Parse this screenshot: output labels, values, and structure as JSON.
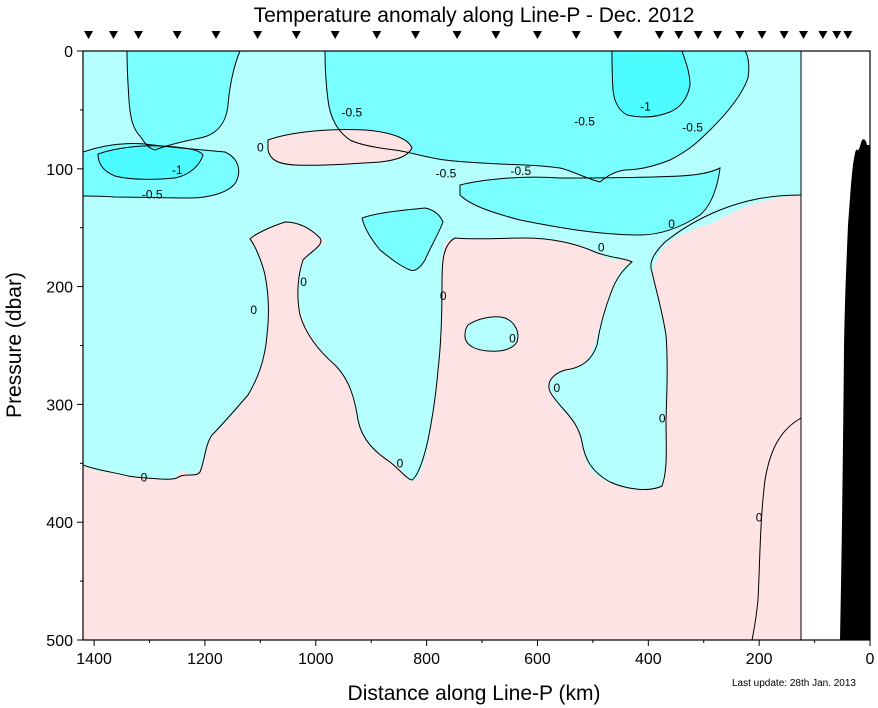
{
  "chart_data": {
    "type": "contour",
    "title": "Temperature anomaly along Line-P - Dec. 2012",
    "xlabel": "Distance along Line-P (km)",
    "ylabel": "Pressure (dbar)",
    "xlim": [
      1420,
      0
    ],
    "ylim": [
      500,
      0
    ],
    "x_ticks": [
      1400,
      1200,
      1000,
      800,
      600,
      400,
      200,
      0
    ],
    "y_ticks": [
      0,
      100,
      200,
      300,
      400,
      500
    ],
    "station_distances_km": [
      1410,
      1365,
      1320,
      1250,
      1180,
      1105,
      1035,
      965,
      890,
      820,
      745,
      675,
      600,
      530,
      455,
      380,
      345,
      310,
      275,
      235,
      195,
      155,
      120,
      85,
      60,
      40
    ],
    "contour_levels": [
      -1,
      -0.5,
      0
    ],
    "colors": {
      "positive": "#fde3e3",
      "negative_light": "#b5ffff",
      "negative_medium": "#79ffff",
      "negative_strong": "#4dfcff",
      "line": "#000000"
    },
    "labels": [
      {
        "text": "-0.5",
        "x": 935,
        "y": 52
      },
      {
        "text": "-0.5",
        "x": 515,
        "y": 60
      },
      {
        "text": "-1",
        "x": 405,
        "y": 47
      },
      {
        "text": "-0.5",
        "x": 320,
        "y": 65
      },
      {
        "text": "-1",
        "x": 1250,
        "y": 101
      },
      {
        "text": "-0.5",
        "x": 1295,
        "y": 122
      },
      {
        "text": "0",
        "x": 1100,
        "y": 82
      },
      {
        "text": "-0.5",
        "x": 765,
        "y": 104
      },
      {
        "text": "-0.5",
        "x": 630,
        "y": 102
      },
      {
        "text": "0",
        "x": 485,
        "y": 167
      },
      {
        "text": "0",
        "x": 358,
        "y": 147
      },
      {
        "text": "0",
        "x": 1112,
        "y": 220
      },
      {
        "text": "0",
        "x": 1022,
        "y": 196
      },
      {
        "text": "0",
        "x": 770,
        "y": 208
      },
      {
        "text": "0",
        "x": 645,
        "y": 244
      },
      {
        "text": "0",
        "x": 565,
        "y": 286
      },
      {
        "text": "0",
        "x": 375,
        "y": 312
      },
      {
        "text": "0",
        "x": 848,
        "y": 350
      },
      {
        "text": "0",
        "x": 1310,
        "y": 362
      },
      {
        "text": "0",
        "x": 200,
        "y": 396
      }
    ]
  },
  "footnote": "Last update: 28th Jan. 2013"
}
